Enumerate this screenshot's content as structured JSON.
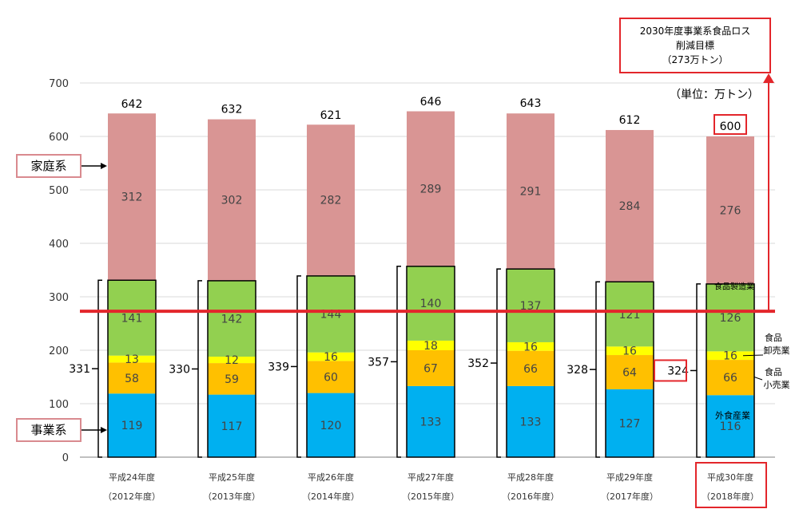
{
  "chart_data": {
    "type": "bar",
    "stacked": true,
    "ylim": [
      0,
      700
    ],
    "yticks": [
      0,
      100,
      200,
      300,
      400,
      500,
      600,
      700
    ],
    "grid": true,
    "categories": [
      "平成24年度",
      "平成25年度",
      "平成26年度",
      "平成27年度",
      "平成28年度",
      "平成29年度",
      "平成30年度"
    ],
    "categories_sub": [
      "（2012年度）",
      "（2013年度）",
      "（2014年度）",
      "（2015年度）",
      "（2016年度）",
      "（2017年度）",
      "（2018年度）"
    ],
    "series": [
      {
        "name": "外食産業",
        "color": "#00b0f0",
        "values": [
          119,
          117,
          120,
          133,
          133,
          127,
          116
        ]
      },
      {
        "name": "食品小売業",
        "color": "#ffc000",
        "values": [
          58,
          59,
          60,
          67,
          66,
          64,
          66
        ]
      },
      {
        "name": "食品卸売業",
        "color": "#ffff00",
        "values": [
          13,
          12,
          16,
          18,
          16,
          16,
          16
        ]
      },
      {
        "name": "食品製造業",
        "color": "#92d050",
        "values": [
          141,
          142,
          144,
          140,
          137,
          121,
          126
        ]
      },
      {
        "name": "家庭系",
        "color": "#d99594",
        "values": [
          312,
          302,
          282,
          289,
          291,
          284,
          276
        ]
      }
    ],
    "totals": [
      642,
      632,
      621,
      646,
      643,
      612,
      600
    ],
    "business_totals": [
      331,
      330,
      339,
      357,
      352,
      328,
      324
    ],
    "target_line": 273,
    "target_line_color": "#e3262b"
  },
  "labels": {
    "household": "家庭系",
    "business": "事業系",
    "unit": "（単位：万トン）",
    "manufacturing": "食品製造業",
    "wholesale_1": "食品",
    "wholesale_2": "卸売業",
    "retail_1": "食品",
    "retail_2": "小売業",
    "restaurant": "外食産業"
  },
  "target_box": {
    "line1": "2030年度事業系食品ロス",
    "line2": "削減目標",
    "line3": "（273万トン）"
  },
  "colors": {
    "highlight": "#e3262b",
    "grid": "#d9d9d9",
    "axis": "#808080"
  }
}
